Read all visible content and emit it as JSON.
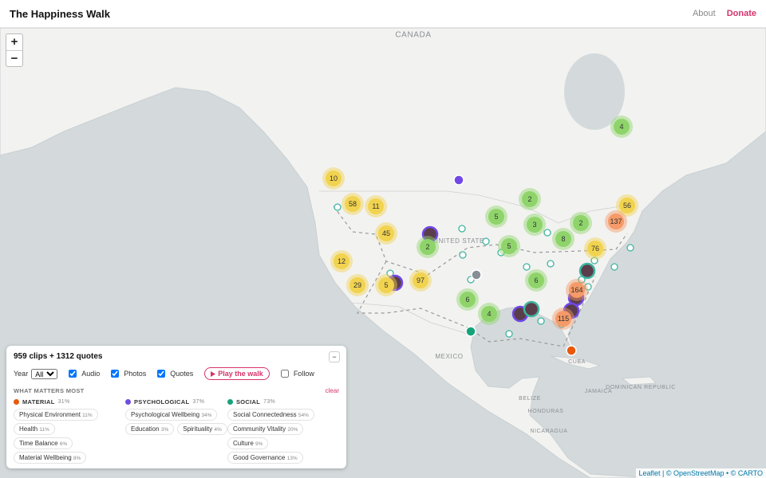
{
  "header": {
    "title": "The Happiness Walk",
    "nav": [
      "About",
      "Donate"
    ]
  },
  "map": {
    "zoom": [
      "+",
      "−"
    ],
    "labels": [
      "CANADA",
      "UNITED STATES",
      "MEXICO",
      "CUBA",
      "BELIZE",
      "HONDURAS",
      "NICARAGUA",
      "JAMAICA",
      "DOMINICAN REPUBLIC"
    ],
    "clusters": [
      {
        "count": 4,
        "color": "#8fd46a"
      },
      {
        "count": 10,
        "color": "#f2d34f"
      },
      {
        "count": 58,
        "color": "#f2d34f"
      },
      {
        "count": 11,
        "color": "#f2d34f"
      },
      {
        "count": 2,
        "color": "#8fd46a"
      },
      {
        "count": 5,
        "color": "#8fd46a"
      },
      {
        "count": 3,
        "color": "#8fd46a"
      },
      {
        "count": 56,
        "color": "#f2d34f"
      },
      {
        "count": 2,
        "color": "#8fd46a"
      },
      {
        "count": 137,
        "color": "#f59a68"
      },
      {
        "count": 45,
        "color": "#f2d34f"
      },
      {
        "count": 2,
        "color": "#8fd46a"
      },
      {
        "count": 5,
        "color": "#8fd46a"
      },
      {
        "count": 8,
        "color": "#8fd46a"
      },
      {
        "count": 76,
        "color": "#f2d34f"
      },
      {
        "count": 12,
        "color": "#f2d34f"
      },
      {
        "count": 29,
        "color": "#f2d34f"
      },
      {
        "count": 5,
        "color": "#f2d34f"
      },
      {
        "count": 97,
        "color": "#f2d34f"
      },
      {
        "count": 6,
        "color": "#8fd46a"
      },
      {
        "count": 164,
        "color": "#f59a68"
      },
      {
        "count": 6,
        "color": "#8fd46a"
      },
      {
        "count": 4,
        "color": "#8fd46a"
      },
      {
        "count": 115,
        "color": "#f59a68"
      }
    ],
    "attribution": "Leaflet | © OpenStreetMap • © CARTO"
  },
  "panel": {
    "summary": "959 clips + 1312 quotes",
    "collapse": "−",
    "year_label": "Year",
    "year": "All",
    "filters": [
      "Audio",
      "Photos",
      "Quotes"
    ],
    "play": "Play the walk",
    "follow": "Follow",
    "heading": "WHAT MATTERS MOST",
    "clear": "clear",
    "groups": [
      {
        "name": "MATERIAL",
        "share": "31%",
        "color": "#e8590c",
        "tags": [
          {
            "name": "Physical Environment",
            "share": "11%"
          },
          {
            "name": "Health",
            "share": "11%"
          },
          {
            "name": "Time Balance",
            "share": "6%"
          },
          {
            "name": "Material Wellbeing",
            "share": "8%"
          }
        ]
      },
      {
        "name": "PSYCHOLOGICAL",
        "share": "37%",
        "color": "#6f4ee0",
        "tags": [
          {
            "name": "Psychological Wellbeing",
            "share": "34%"
          },
          {
            "name": "Education",
            "share": "3%"
          },
          {
            "name": "Spirituality",
            "share": "4%"
          }
        ]
      },
      {
        "name": "SOCIAL",
        "share": "73%",
        "color": "#16a37a",
        "tags": [
          {
            "name": "Social Connectedness",
            "share": "54%"
          },
          {
            "name": "Community Vitality",
            "share": "20%"
          },
          {
            "name": "Culture",
            "share": "9%"
          },
          {
            "name": "Good Governance",
            "share": "13%"
          }
        ]
      }
    ]
  }
}
